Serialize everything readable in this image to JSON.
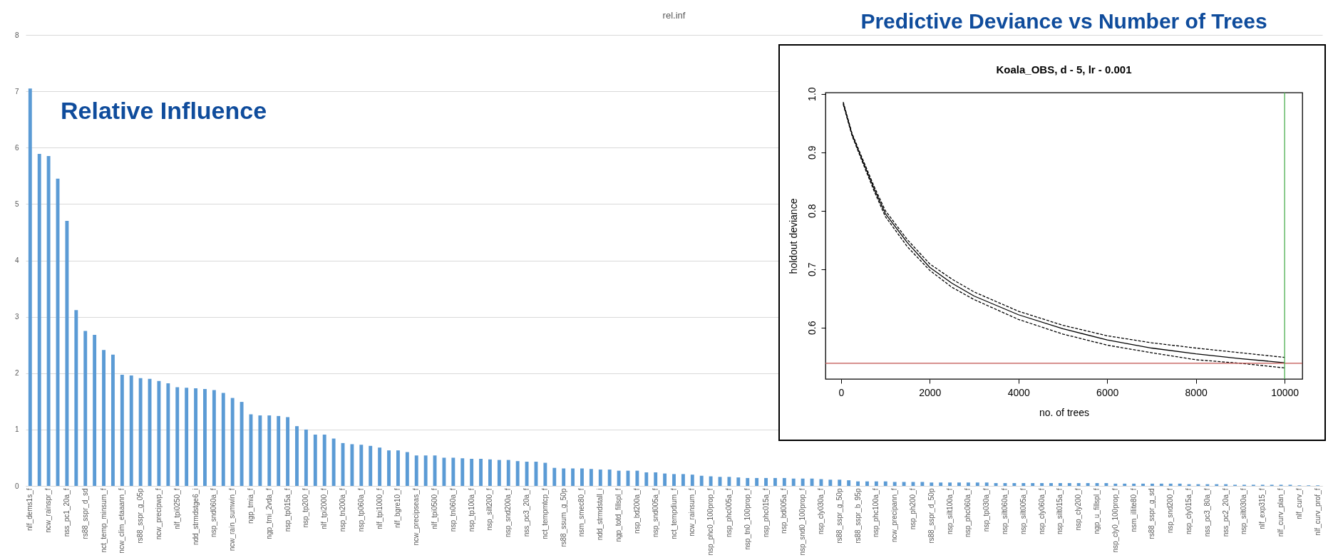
{
  "chart_data": [
    {
      "type": "bar",
      "title": "rel.inf",
      "annotations": [
        "Relative Influence"
      ],
      "color": "#5b9bd5",
      "ylim": [
        0,
        8
      ],
      "yticks": [
        0,
        1,
        2,
        3,
        4,
        5,
        6,
        7,
        8
      ],
      "grid": "y",
      "categories": [
        "nlf_dems1s_f",
        null,
        "ncw_rainspr_f",
        null,
        "nss_pc1_20a_f",
        null,
        "rs88_sspr_d_sd",
        null,
        "nct_temp_minsum_f",
        null,
        "ncw_clim_etaaann_f",
        null,
        "rs88_sspr_g_05p",
        null,
        "ncw_precipwp_f",
        null,
        "nlf_tpi0250_f",
        null,
        "ndd_strmdstge6_i",
        null,
        "nsp_snd060a_f",
        null,
        "ncw_rain_sumwin_f",
        null,
        "ngp_tmia_f",
        null,
        "ngp_tmi_2vda_f",
        null,
        "nsp_tp015a_f",
        null,
        "nsp_tp200_f",
        null,
        "nlf_tpi2000_f",
        null,
        "nsp_tn200a_f",
        null,
        "nsp_tp060a_f",
        null,
        "nlf_tpi1000_f",
        null,
        "nlf_bgre10_f",
        null,
        "ncw_precipseas_f",
        null,
        "nlf_tpi0500_f",
        null,
        "nsp_tn060a_f",
        null,
        "nsp_tp100a_f",
        null,
        "nsp_silt200_f",
        null,
        "nsp_snd200a_f",
        null,
        "nss_pc3_20a_f",
        null,
        "nct_tempmtcp_f",
        null,
        "rs88_ssum_g_50p",
        null,
        "nsm_smec80_f",
        null,
        "ndd_strmdstall_i",
        null,
        "ngp_totd_fillspl_f",
        null,
        "nsp_bd200a_f",
        null,
        "nsp_snd005a_f",
        null,
        "nct_tempdium_f",
        null,
        "ncw_rainsum_f",
        null,
        "nsp_phc0_100prop_f",
        null,
        "nsp_phc005a_f",
        null,
        "nsp_tn0_100prop_f",
        null,
        "nsp_phc015a_f",
        null,
        "nsp_bd005a_f",
        null,
        "nsp_snd0_100prop_f",
        null,
        "nsp_cly030a_f",
        null,
        "rs88_sspr_g_50p",
        null,
        "rs88_sspr_b_95p",
        null,
        "nsp_phc100a_f",
        null,
        "ncw_precipann_f",
        null,
        "nsp_ph200_f",
        null,
        "rs88_sspr_d_50p",
        null,
        "nsp_silt100a_f",
        null,
        "nsp_phc060a_f",
        null,
        "nsp_tp030a_f",
        null,
        "nsp_silt060a_f",
        null,
        "nsp_silt005a_f",
        null,
        "nsp_cly060a_f",
        null,
        "nsp_silt015a_f",
        null,
        "nsp_cly200_f",
        null,
        "ngp_u_fillspl_f",
        null,
        "nsp_cly0_100prop_f",
        null,
        "nsm_illite80_f",
        null,
        "rs88_sspr_g_sd",
        null,
        "nsp_snd200_f",
        null,
        "nsp_cly015a_f",
        null,
        "nss_pc3_80a_f",
        null,
        "nss_pc2_20a_f",
        null,
        "nsp_silt030a_f",
        null,
        "nlf_exp315_f",
        null,
        "nlf_curv_plan_f",
        null,
        "nlf_curv_f",
        null,
        "nlf_curv_prof_f"
      ],
      "values": [
        7.05,
        5.89,
        5.85,
        5.45,
        4.7,
        3.12,
        2.75,
        2.68,
        2.41,
        2.33,
        1.97,
        1.96,
        1.91,
        1.9,
        1.86,
        1.82,
        1.75,
        1.74,
        1.73,
        1.72,
        1.7,
        1.65,
        1.56,
        1.49,
        1.27,
        1.25,
        1.25,
        1.24,
        1.22,
        1.06,
        1.0,
        0.91,
        0.91,
        0.84,
        0.76,
        0.74,
        0.73,
        0.71,
        0.68,
        0.63,
        0.63,
        0.6,
        0.54,
        0.54,
        0.54,
        0.5,
        0.5,
        0.49,
        0.48,
        0.48,
        0.47,
        0.46,
        0.46,
        0.44,
        0.43,
        0.43,
        0.41,
        0.32,
        0.31,
        0.31,
        0.31,
        0.3,
        0.29,
        0.29,
        0.27,
        0.27,
        0.27,
        0.24,
        0.24,
        0.22,
        0.21,
        0.21,
        0.2,
        0.18,
        0.17,
        0.16,
        0.16,
        0.15,
        0.14,
        0.14,
        0.14,
        0.14,
        0.14,
        0.13,
        0.13,
        0.13,
        0.12,
        0.11,
        0.11,
        0.1,
        0.08,
        0.08,
        0.08,
        0.08,
        0.07,
        0.07,
        0.07,
        0.07,
        0.06,
        0.06,
        0.06,
        0.06,
        0.06,
        0.06,
        0.06,
        0.05,
        0.05,
        0.05,
        0.05,
        0.05,
        0.05,
        0.05,
        0.05,
        0.05,
        0.05,
        0.05,
        0.05,
        0.05,
        0.04,
        0.04,
        0.04,
        0.04,
        0.04,
        0.04,
        0.04,
        0.04,
        0.03,
        0.03,
        0.03,
        0.03,
        0.03,
        0.02,
        0.02,
        0.02,
        0.02,
        0.02,
        0.02,
        0.02,
        0.01,
        0.01,
        0.01
      ]
    },
    {
      "type": "line",
      "title": "Predictive Deviance vs Number of Trees",
      "subtitle": "Koala_OBS, d - 5, lr - 0.001",
      "xlabel": "no. of trees",
      "ylabel": "holdout deviance",
      "xlim": [
        -350,
        10400
      ],
      "xticks": [
        0,
        2000,
        4000,
        6000,
        8000,
        10000
      ],
      "ylim": [
        0.512,
        1.002
      ],
      "yticks": [
        0.6,
        0.7,
        0.8,
        0.9,
        {
          "value": 1,
          "label": "1.0"
        }
      ],
      "x": [
        50,
        250,
        500,
        750,
        1000,
        1500,
        2000,
        2500,
        3000,
        4000,
        5000,
        6000,
        7000,
        8000,
        9000,
        10000
      ],
      "series": [
        {
          "color": "#000000",
          "line_style": "solid",
          "values": [
            0.984,
            0.93,
            0.883,
            0.837,
            0.795,
            0.745,
            0.703,
            0.676,
            0.654,
            0.622,
            0.598,
            0.579,
            0.565,
            0.555,
            0.547,
            0.54
          ]
        },
        {
          "color": "#000000",
          "line_style": "dashed",
          "values": [
            0.986,
            0.932,
            0.886,
            0.841,
            0.8,
            0.75,
            0.709,
            0.683,
            0.661,
            0.628,
            0.604,
            0.586,
            0.574,
            0.565,
            0.557,
            0.549
          ]
        },
        {
          "color": "#000000",
          "line_style": "dashed",
          "values": [
            0.982,
            0.928,
            0.88,
            0.833,
            0.79,
            0.738,
            0.698,
            0.669,
            0.648,
            0.614,
            0.589,
            0.57,
            0.557,
            0.545,
            0.539,
            0.531
          ]
        }
      ],
      "ref_lines": [
        {
          "axis": "y",
          "value": 0.539,
          "color": "#c0504d"
        },
        {
          "axis": "x",
          "value": 10000,
          "color": "#4caf50"
        }
      ]
    }
  ]
}
